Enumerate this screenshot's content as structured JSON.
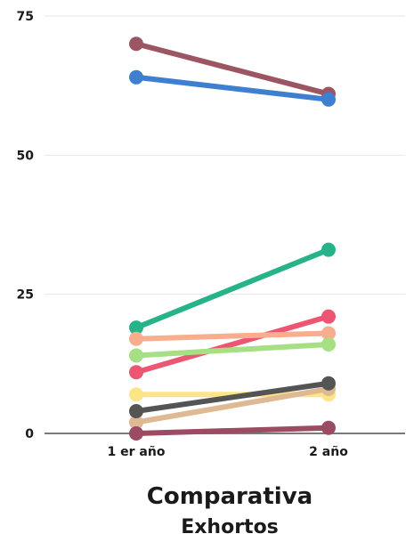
{
  "chart_data": {
    "type": "line",
    "title_lines": [
      "Comparativa",
      "Exhortos"
    ],
    "categories": [
      "1 er año",
      "2 año"
    ],
    "yticks": [
      0,
      25,
      50,
      75
    ],
    "ylim": [
      0,
      75
    ],
    "grid": true,
    "series": [
      {
        "values": [
          70,
          61
        ],
        "color": "#9c5663"
      },
      {
        "values": [
          64,
          60
        ],
        "color": "#3f7fcf"
      },
      {
        "values": [
          19,
          33
        ],
        "color": "#27b38a"
      },
      {
        "values": [
          11,
          21
        ],
        "color": "#ec5672"
      },
      {
        "values": [
          17,
          18
        ],
        "color": "#f8ad8f"
      },
      {
        "values": [
          14,
          16
        ],
        "color": "#a6df84"
      },
      {
        "values": [
          7,
          7
        ],
        "color": "#fbe586"
      },
      {
        "values": [
          2,
          8
        ],
        "color": "#dfb894"
      },
      {
        "values": [
          4,
          9
        ],
        "color": "#545454"
      },
      {
        "values": [
          0,
          1
        ],
        "color": "#9c4c62"
      }
    ]
  }
}
